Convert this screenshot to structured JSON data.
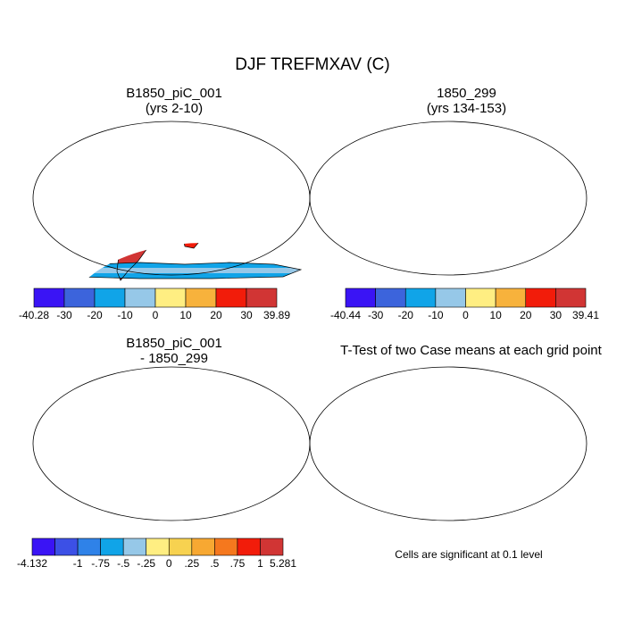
{
  "title": "DJF TREFMXAV (C)",
  "panels": [
    {
      "name": "case",
      "title": "B1850_piC_001\n(yrs 2-10)"
    },
    {
      "name": "control",
      "title": "1850_299\n(yrs 134-153)"
    },
    {
      "name": "difference",
      "title": "B1850_piC_001\n- 1850_299"
    },
    {
      "name": "ttest",
      "title": "T-Test of two Case means at each grid point"
    }
  ],
  "colorbars": [
    {
      "name": "case-colorbar",
      "colors": [
        "#3a14f5",
        "#3c64dc",
        "#10a4e8",
        "#96c8e8",
        "#ffee82",
        "#f7b23c",
        "#f21c0a",
        "#d13534"
      ],
      "labels": [
        "-40.28",
        "-30",
        "-20",
        "-10",
        "0",
        "10",
        "20",
        "30",
        "39.89"
      ]
    },
    {
      "name": "control-colorbar",
      "colors": [
        "#3a14f5",
        "#3c64dc",
        "#10a4e8",
        "#96c8e8",
        "#ffee82",
        "#f7b23c",
        "#f21c0a",
        "#d13534"
      ],
      "labels": [
        "-40.44",
        "-30",
        "-20",
        "-10",
        "0",
        "10",
        "20",
        "30",
        "39.41"
      ]
    },
    {
      "name": "difference-colorbar",
      "colors": [
        "#3a14f5",
        "#3c50e6",
        "#2f82e8",
        "#10a4e8",
        "#96c8e8",
        "#ffee82",
        "#f7d250",
        "#f7a832",
        "#f5781e",
        "#f21c0a",
        "#d13534"
      ],
      "labels": [
        "-4.132",
        "-1",
        "-.75",
        "-.5",
        "-.25",
        "0",
        ".25",
        ".5",
        ".75",
        "1",
        "5.281"
      ],
      "label_slots": [
        0,
        2,
        3,
        4,
        5,
        6,
        7,
        8,
        9,
        10,
        11
      ]
    }
  ],
  "significance_note": "Cells are significant at 0.1 level",
  "colors": {
    "significant": "#ff0000",
    "coast": "#000000"
  }
}
